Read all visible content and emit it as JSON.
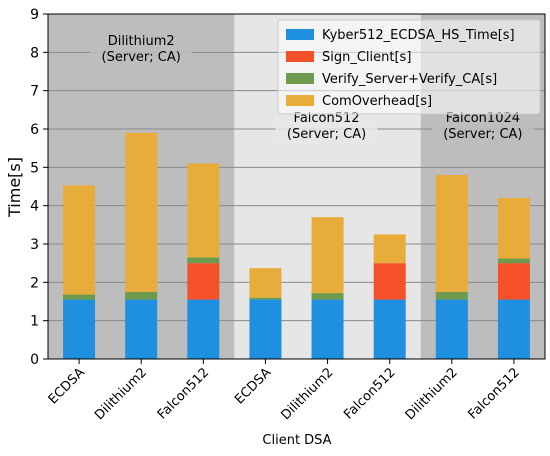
{
  "chart_data": {
    "type": "bar",
    "stacked": true,
    "xlabel": "Client DSA",
    "ylabel": "Time[s]",
    "ylim": [
      0,
      9
    ],
    "yticks": [
      0,
      1,
      2,
      3,
      4,
      5,
      6,
      7,
      8,
      9
    ],
    "grid": true,
    "legend_position": "top-right",
    "categories": [
      "ECDSA",
      "Dilithium2",
      "Falcon512",
      "ECDSA",
      "Dilithium2",
      "Falcon512",
      "Dilithium2",
      "Falcon512"
    ],
    "groups": [
      {
        "label": "Dilithium2\n(Server; CA)",
        "categories": [
          0,
          1,
          2
        ],
        "shade": "#bdbdbd"
      },
      {
        "label": "Falcon512\n(Server; CA)",
        "categories": [
          3,
          4,
          5
        ],
        "shade": "#e6e6e6"
      },
      {
        "label": "Falcon1024\n(Server; CA)",
        "categories": [
          6,
          7
        ],
        "shade": "#bdbdbd"
      }
    ],
    "series": [
      {
        "name": "Kyber512_ECDSA_HS_Time[s]",
        "color": "#1f8fe0",
        "values": [
          1.55,
          1.55,
          1.55,
          1.55,
          1.55,
          1.55,
          1.55,
          1.55
        ]
      },
      {
        "name": "Sign_Client[s]",
        "color": "#f4502a",
        "values": [
          0.0,
          0.0,
          0.95,
          0.0,
          0.0,
          0.95,
          0.0,
          0.95
        ]
      },
      {
        "name": "Verify_Server+Verify_CA[s]",
        "color": "#6e9a4d",
        "values": [
          0.13,
          0.2,
          0.15,
          0.05,
          0.17,
          0.0,
          0.2,
          0.12
        ]
      },
      {
        "name": "ComOverhead[s]",
        "color": "#e8ac3a",
        "values": [
          2.85,
          4.15,
          2.45,
          0.77,
          1.98,
          0.75,
          3.05,
          1.58
        ]
      }
    ]
  }
}
